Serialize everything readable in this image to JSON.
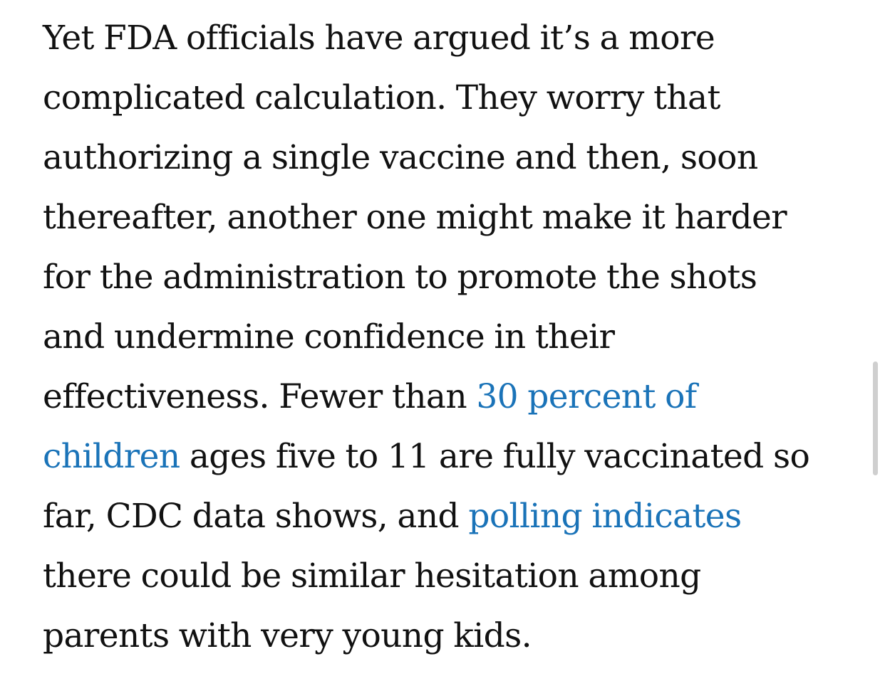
{
  "article": {
    "lines": [
      [
        {
          "text": "Yet FDA officials have argued it’s a more"
        }
      ],
      [
        {
          "text": "complicated calculation. They worry that"
        }
      ],
      [
        {
          "text": "authorizing a single vaccine and then, soon"
        }
      ],
      [
        {
          "text": "thereafter, another one might make it harder"
        }
      ],
      [
        {
          "text": "for the administration to promote the shots"
        }
      ],
      [
        {
          "text": "and undermine confidence in their"
        }
      ],
      [
        {
          "text": "effectiveness. Fewer than "
        },
        {
          "text": "30 percent of",
          "link": true,
          "name": "link-30-percent-of-children"
        }
      ],
      [
        {
          "text": "children",
          "link": true,
          "name": "link-30-percent-of-children"
        },
        {
          "text": " ages five to 11 are fully vaccinated so"
        }
      ],
      [
        {
          "text": "far, CDC data shows, and "
        },
        {
          "text": "polling indicates",
          "link": true,
          "name": "link-polling-indicates"
        }
      ],
      [
        {
          "text": "there could be similar hesitation among"
        }
      ],
      [
        {
          "text": "parents with very young kids."
        }
      ]
    ]
  },
  "colors": {
    "text": "#111111",
    "link": "#1a73b8",
    "background": "#ffffff",
    "scrollbar_thumb": "#cfcfcf"
  }
}
